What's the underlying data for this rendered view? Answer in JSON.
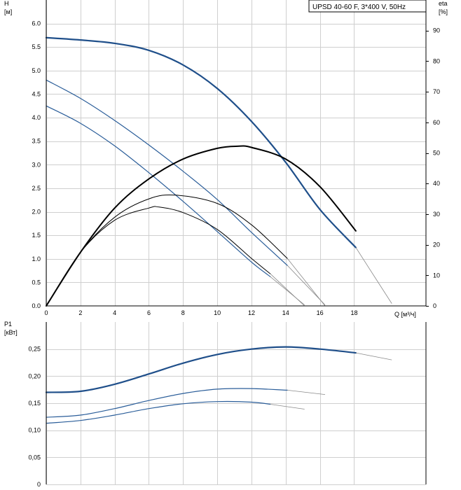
{
  "legend_box": {
    "text": "UPSD 40-60 F, 3*400 V, 50Hz"
  },
  "chart_data": [
    {
      "type": "line",
      "panel": "head",
      "title": "",
      "ylabel": "H",
      "yunit": "[м]",
      "y2label": "eta",
      "y2unit": "[%]",
      "xlabel": "Q [м³/ч]",
      "xlim": [
        0,
        22.2
      ],
      "ylim": [
        0,
        6.5
      ],
      "y2lim": [
        0,
        100
      ],
      "x_ticks": [
        0,
        2,
        4,
        6,
        8,
        10,
        12,
        14,
        16,
        18
      ],
      "x_tick_labels": [
        "0",
        "2",
        "4",
        "6",
        "8",
        "10",
        "12",
        "14",
        "16",
        "18"
      ],
      "y_ticks": [
        0,
        0.5,
        1,
        1.5,
        2,
        2.5,
        3,
        3.5,
        4,
        4.5,
        5,
        5.5,
        6
      ],
      "y_tick_labels": [
        "0.0",
        "0.5",
        "1.0",
        "1.5",
        "2.0",
        "2.5",
        "3.0",
        "3.5",
        "4.0",
        "4.5",
        "5.0",
        "5.5",
        "6.0"
      ],
      "y2_ticks": [
        0,
        10,
        20,
        30,
        40,
        50,
        60,
        70,
        80,
        90
      ],
      "y2_tick_labels": [
        "0",
        "10",
        "20",
        "30",
        "40",
        "50",
        "60",
        "70",
        "80",
        "90"
      ],
      "grid": true,
      "series": [
        {
          "kind": "head",
          "color": "#1f4f8a",
          "width": 2.2,
          "x": [
            0,
            2,
            4,
            6,
            8,
            10,
            12,
            14,
            16,
            18.1
          ],
          "y": [
            5.7,
            5.65,
            5.58,
            5.43,
            5.12,
            4.62,
            3.92,
            3.05,
            2.05,
            1.24
          ],
          "tail_x": [
            18.1,
            20.2
          ],
          "tail_y": [
            1.24,
            0.05
          ]
        },
        {
          "kind": "head",
          "color": "#2a5d99",
          "width": 1.2,
          "x": [
            0,
            2,
            4,
            6,
            8,
            10,
            12,
            14.1
          ],
          "y": [
            4.8,
            4.41,
            3.94,
            3.42,
            2.86,
            2.26,
            1.56,
            0.86
          ],
          "tail_x": [
            14.1,
            16.3
          ],
          "tail_y": [
            0.86,
            0.02
          ]
        },
        {
          "kind": "head",
          "color": "#2a5d99",
          "width": 1.2,
          "x": [
            0,
            2,
            4,
            6,
            8,
            10,
            12,
            13.1
          ],
          "y": [
            4.25,
            3.88,
            3.4,
            2.83,
            2.22,
            1.58,
            0.93,
            0.62
          ],
          "tail_x": [
            13.1,
            15.1
          ],
          "tail_y": [
            0.62,
            0.02
          ]
        },
        {
          "kind": "eta",
          "color": "#000000",
          "width": 2,
          "x": [
            0,
            2,
            4,
            6,
            8,
            10,
            11.2,
            12,
            14,
            16,
            18.1
          ],
          "y": [
            0,
            17.5,
            32,
            41.5,
            48,
            51.5,
            52.2,
            51.8,
            48,
            39,
            24.5
          ]
        },
        {
          "kind": "eta",
          "color": "#000000",
          "width": 1,
          "x": [
            0,
            2,
            4,
            6,
            7.6,
            10,
            12,
            14.1
          ],
          "y": [
            0,
            17.5,
            29,
            35,
            36.2,
            33.5,
            26.5,
            15.5
          ],
          "tail_x": [
            14.1,
            16.3
          ],
          "tail_y": [
            15.5,
            0
          ]
        },
        {
          "kind": "eta",
          "color": "#000000",
          "width": 1,
          "x": [
            0,
            2,
            4,
            6,
            6.6,
            8,
            10,
            12,
            13.1
          ],
          "y": [
            0,
            17.5,
            28,
            32,
            32.3,
            30.5,
            25,
            15.5,
            10.5
          ],
          "tail_x": [
            13.1,
            15.1
          ],
          "tail_y": [
            10.5,
            0
          ]
        }
      ]
    },
    {
      "type": "line",
      "panel": "power",
      "title": "",
      "ylabel": "P1",
      "yunit": "[кВт]",
      "xlim": [
        0,
        22.2
      ],
      "ylim": [
        0,
        0.3
      ],
      "y_ticks": [
        0,
        0.05,
        0.1,
        0.15,
        0.2,
        0.25
      ],
      "y_tick_labels": [
        "0",
        "0,05",
        "0,10",
        "0,15",
        "0,20",
        "0,25"
      ],
      "grid": true,
      "series": [
        {
          "color": "#1f4f8a",
          "width": 2.2,
          "x": [
            0,
            2,
            4,
            6,
            8,
            10,
            12,
            14,
            16,
            18.1
          ],
          "y": [
            0.17,
            0.172,
            0.185,
            0.204,
            0.224,
            0.24,
            0.25,
            0.254,
            0.25,
            0.243
          ],
          "tail_x": [
            18.1,
            20.2
          ],
          "tail_y": [
            0.243,
            0.23
          ]
        },
        {
          "color": "#2a5d99",
          "width": 1.2,
          "x": [
            0,
            2,
            4,
            6,
            8,
            10,
            12,
            14.1
          ],
          "y": [
            0.124,
            0.128,
            0.14,
            0.155,
            0.168,
            0.176,
            0.177,
            0.174
          ],
          "tail_x": [
            14.1,
            16.3
          ],
          "tail_y": [
            0.174,
            0.166
          ]
        },
        {
          "color": "#2a5d99",
          "width": 1.2,
          "x": [
            0,
            2,
            4,
            6,
            8,
            10,
            12,
            13.1
          ],
          "y": [
            0.113,
            0.118,
            0.128,
            0.14,
            0.149,
            0.153,
            0.152,
            0.148
          ],
          "tail_x": [
            13.1,
            15.1
          ],
          "tail_y": [
            0.148,
            0.139
          ]
        }
      ]
    }
  ]
}
